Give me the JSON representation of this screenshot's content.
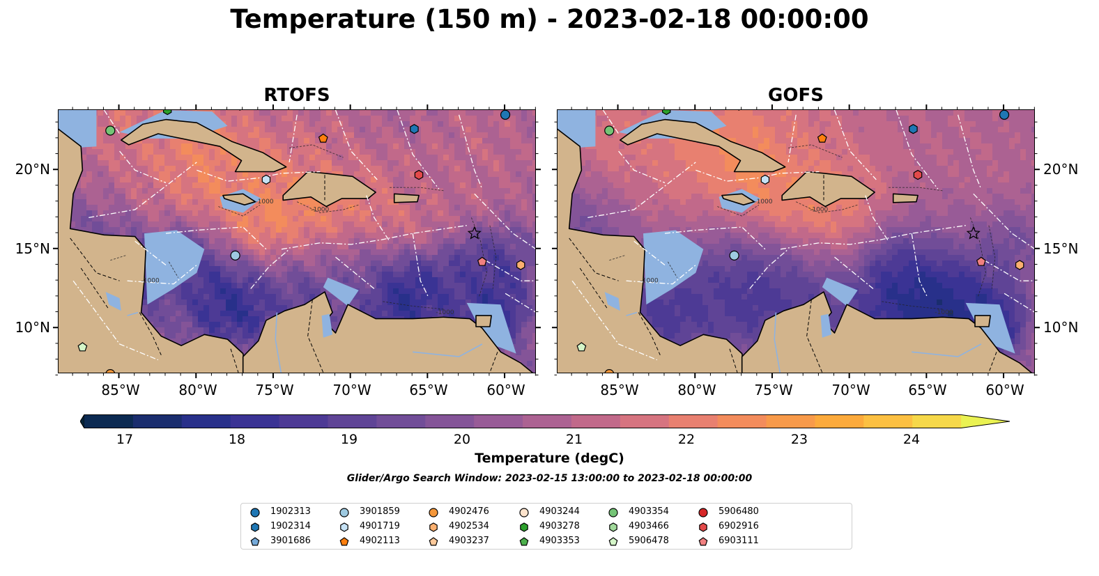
{
  "title": "Temperature (150 m) - 2023-02-18 00:00:00",
  "panels": [
    {
      "title": "RTOFS"
    },
    {
      "title": "GOFS"
    }
  ],
  "x_ticks": [
    "85°W",
    "80°W",
    "75°W",
    "70°W",
    "65°W",
    "60°W"
  ],
  "y_ticks": [
    "20°N",
    "15°N",
    "10°N"
  ],
  "colorbar": {
    "label": "Temperature (degC)",
    "ticks": [
      "17",
      "18",
      "19",
      "20",
      "21",
      "22",
      "23",
      "24"
    ],
    "min": 17,
    "max": 24.5,
    "step": 0.5,
    "extend": "both",
    "colors": [
      "#062338",
      "#0c2a52",
      "#1a2d6e",
      "#28308a",
      "#3a3394",
      "#4d3a95",
      "#5f4496",
      "#714d98",
      "#845498",
      "#985b97",
      "#ac6292",
      "#c1698a",
      "#d67480",
      "#e88070",
      "#f38c5c",
      "#f89a4a",
      "#fcaa3c",
      "#fcc042",
      "#f6d84a",
      "#eaf252"
    ]
  },
  "search_window": "Glider/Argo Search Window: 2023-02-15 13:00:00 to 2023-02-18 00:00:00",
  "legend": [
    {
      "id": "1902313",
      "marker": "circle",
      "color": "#1f77b4"
    },
    {
      "id": "1902314",
      "marker": "hexagon",
      "color": "#1f77b4"
    },
    {
      "id": "3901686",
      "marker": "pentagon",
      "color": "#74a9d8"
    },
    {
      "id": "3901859",
      "marker": "circle",
      "color": "#9ecae1"
    },
    {
      "id": "4901719",
      "marker": "hexagon",
      "color": "#c6e2f5"
    },
    {
      "id": "4902113",
      "marker": "pentagon",
      "color": "#ff7f0e"
    },
    {
      "id": "4902476",
      "marker": "circle",
      "color": "#f5973a"
    },
    {
      "id": "4902534",
      "marker": "hexagon",
      "color": "#fbb070"
    },
    {
      "id": "4903237",
      "marker": "pentagon",
      "color": "#fcc99a"
    },
    {
      "id": "4903244",
      "marker": "circle",
      "color": "#fde3cc"
    },
    {
      "id": "4903278",
      "marker": "hexagon",
      "color": "#2ca02c"
    },
    {
      "id": "4903353",
      "marker": "pentagon",
      "color": "#4cb04c"
    },
    {
      "id": "4903354",
      "marker": "circle",
      "color": "#74c476"
    },
    {
      "id": "4903466",
      "marker": "hexagon",
      "color": "#a1d99b"
    },
    {
      "id": "5906478",
      "marker": "pentagon",
      "color": "#d4f5c8"
    },
    {
      "id": "5906480",
      "marker": "circle",
      "color": "#d62728"
    },
    {
      "id": "6902916",
      "marker": "hexagon",
      "color": "#e34a4a"
    },
    {
      "id": "6903111",
      "marker": "pentagon",
      "color": "#f08080"
    }
  ],
  "map_colors": {
    "land": "#d2b48c",
    "shelf": "#8fb3e0",
    "pacific": "#062338"
  }
}
